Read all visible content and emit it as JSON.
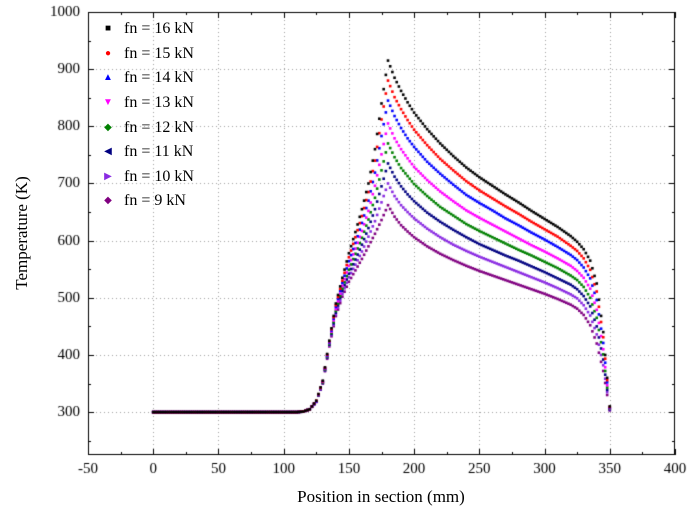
{
  "chart_data": {
    "type": "scatter",
    "title": "",
    "xlabel": "Position in section (mm)",
    "ylabel": "Temperature (K)",
    "grid": true,
    "legend_position": "top-left",
    "x_axis": {
      "min": -50,
      "max": 400,
      "minor_step": 25,
      "ticks": [
        -50,
        0,
        50,
        100,
        150,
        200,
        250,
        300,
        350,
        400
      ]
    },
    "y_axis": {
      "min": 225,
      "max": 1000,
      "minor_step": 50,
      "ticks": [
        300,
        400,
        500,
        600,
        700,
        800,
        900,
        1000
      ]
    },
    "x": [
      0,
      20,
      40,
      60,
      80,
      100,
      110,
      115,
      120,
      125,
      130,
      135,
      140,
      145,
      150,
      155,
      160,
      165,
      170,
      175,
      180,
      185,
      190,
      195,
      200,
      210,
      220,
      230,
      240,
      250,
      260,
      270,
      280,
      290,
      300,
      310,
      320,
      325,
      330,
      335,
      340,
      345,
      348,
      350
    ],
    "series": [
      {
        "name": "fn = 16 kN",
        "color": "#000000",
        "marker": "square",
        "legend_glyph": "■",
        "values": [
          300,
          300,
          300,
          300,
          300,
          300,
          300,
          301,
          305,
          320,
          355,
          425,
          490,
          535,
          578,
          615,
          655,
          700,
          760,
          840,
          915,
          885,
          862,
          842,
          824,
          795,
          770,
          748,
          728,
          711,
          696,
          681,
          667,
          652,
          638,
          624,
          608,
          598,
          585,
          565,
          525,
          440,
          360,
          310
        ]
      },
      {
        "name": "fn = 15 kN",
        "color": "#ff0000",
        "marker": "circle",
        "legend_glyph": "●",
        "values": [
          300,
          300,
          300,
          300,
          300,
          300,
          300,
          301,
          305,
          320,
          354,
          424,
          487,
          530,
          571,
          606,
          643,
          685,
          740,
          812,
          880,
          851,
          830,
          811,
          794,
          767,
          743,
          723,
          704,
          688,
          674,
          660,
          647,
          633,
          620,
          607,
          591,
          582,
          569,
          549,
          511,
          431,
          356,
          309
        ]
      },
      {
        "name": "fn = 14 kN",
        "color": "#0000ff",
        "marker": "triangle-up",
        "legend_glyph": "▲",
        "values": [
          300,
          300,
          300,
          300,
          300,
          300,
          300,
          301,
          305,
          319,
          354,
          422,
          484,
          526,
          564,
          596,
          631,
          670,
          719,
          783,
          845,
          818,
          797,
          779,
          764,
          738,
          717,
          698,
          680,
          666,
          653,
          639,
          627,
          614,
          602,
          589,
          575,
          566,
          553,
          534,
          496,
          421,
          352,
          308
        ]
      },
      {
        "name": "fn = 13 kN",
        "color": "#ff00ff",
        "marker": "triangle-down",
        "legend_glyph": "▼",
        "values": [
          300,
          300,
          300,
          300,
          300,
          300,
          300,
          301,
          305,
          319,
          353,
          421,
          480,
          521,
          556,
          586,
          617,
          652,
          696,
          751,
          805,
          779,
          760,
          744,
          729,
          706,
          686,
          669,
          653,
          640,
          628,
          616,
          604,
          592,
          581,
          569,
          556,
          547,
          535,
          516,
          479,
          410,
          347,
          307
        ]
      },
      {
        "name": "fn = 12 kN",
        "color": "#008000",
        "marker": "diamond",
        "legend_glyph": "◆",
        "values": [
          300,
          300,
          300,
          300,
          300,
          300,
          300,
          301,
          305,
          319,
          352,
          419,
          477,
          516,
          549,
          577,
          605,
          637,
          675,
          723,
          770,
          746,
          727,
          713,
          699,
          678,
          659,
          644,
          629,
          617,
          606,
          595,
          584,
          574,
          563,
          552,
          539,
          531,
          519,
          500,
          465,
          401,
          343,
          306
        ]
      },
      {
        "name": "fn = 11 kN",
        "color": "#000080",
        "marker": "triangle-left",
        "legend_glyph": "◀",
        "values": [
          300,
          300,
          300,
          300,
          300,
          300,
          300,
          301,
          305,
          319,
          351,
          418,
          474,
          512,
          542,
          567,
          593,
          622,
          655,
          695,
          735,
          712,
          695,
          681,
          669,
          649,
          633,
          619,
          606,
          594,
          584,
          574,
          565,
          555,
          545,
          534,
          523,
          515,
          503,
          485,
          450,
          392,
          339,
          305
        ]
      },
      {
        "name": "fn = 10 kN",
        "color": "#8a2be2",
        "marker": "triangle-right",
        "legend_glyph": "▶",
        "values": [
          300,
          300,
          300,
          300,
          300,
          300,
          300,
          301,
          305,
          318,
          351,
          417,
          471,
          507,
          536,
          558,
          581,
          607,
          634,
          667,
          700,
          678,
          662,
          650,
          639,
          621,
          606,
          593,
          582,
          572,
          563,
          554,
          545,
          536,
          527,
          517,
          506,
          499,
          487,
          469,
          436,
          382,
          335,
          304
        ]
      },
      {
        "name": "fn = 9 kN",
        "color": "#800080",
        "marker": "pentagon",
        "legend_glyph": "◆",
        "values": [
          300,
          300,
          300,
          300,
          300,
          300,
          300,
          301,
          305,
          318,
          350,
          415,
          468,
          502,
          528,
          548,
          568,
          590,
          612,
          636,
          662,
          642,
          627,
          616,
          606,
          590,
          577,
          566,
          556,
          547,
          539,
          531,
          523,
          515,
          507,
          498,
          488,
          481,
          470,
          452,
          420,
          372,
          330,
          303
        ]
      }
    ]
  }
}
